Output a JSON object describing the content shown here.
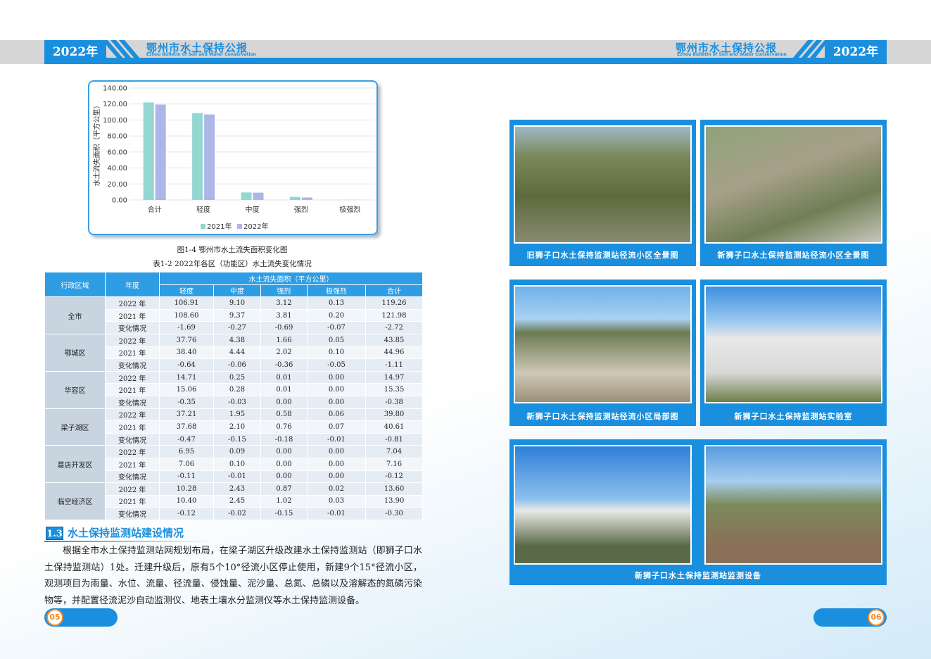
{
  "left_page_header": {
    "year": "2022年",
    "title": "鄂州市水土保持公报",
    "subtitle": "Ezhou Bulletin of Soil and Water Conservation"
  },
  "right_page_header": {
    "year": "2022年",
    "title": "鄂州市水土保持公报",
    "subtitle": "Ezhou Bulletin of Soil and Water Conservation"
  },
  "chart_data": {
    "type": "bar",
    "caption": "图1-4  鄂州市水土流失面积变化图",
    "y_label": "水土流失面积（平方公里）",
    "categories": [
      "合计",
      "轻度",
      "中度",
      "强烈",
      "极强烈"
    ],
    "series": [
      {
        "name": "2021年",
        "color": "#93d6d2",
        "values": [
          121.98,
          108.6,
          9.37,
          3.81,
          0.2
        ]
      },
      {
        "name": "2022年",
        "color": "#adb6e8",
        "values": [
          119.26,
          106.91,
          9.1,
          3.12,
          0.13
        ]
      }
    ],
    "ylim": [
      0,
      140
    ],
    "yticks": [
      {
        "value": 0,
        "label": "0.00"
      },
      {
        "value": 20,
        "label": "20.00"
      },
      {
        "value": 40,
        "label": "40.00"
      },
      {
        "value": 60,
        "label": "60.00"
      },
      {
        "value": 80,
        "label": "80.00"
      },
      {
        "value": 100,
        "label": "100.00"
      },
      {
        "value": 120,
        "label": "120.00"
      },
      {
        "value": 140,
        "label": "140.00"
      }
    ],
    "grid": true
  },
  "table": {
    "title": "表1-2  2022年各区（功能区）水土流失变化情况",
    "header": {
      "region": "行政区域",
      "year": "年度",
      "group": "水土流失面积（平方公里）",
      "columns": [
        "轻度",
        "中度",
        "强烈",
        "极强烈",
        "合计"
      ]
    },
    "groups": [
      {
        "region": "全市",
        "rows": [
          [
            "2022 年",
            "106.91",
            "9.10",
            "3.12",
            "0.13",
            "119.26"
          ],
          [
            "2021 年",
            "108.60",
            "9.37",
            "3.81",
            "0.20",
            "121.98"
          ],
          [
            "变化情况",
            "-1.69",
            "-0.27",
            "-0.69",
            "-0.07",
            "-2.72"
          ]
        ]
      },
      {
        "region": "鄂城区",
        "rows": [
          [
            "2022 年",
            "37.76",
            "4.38",
            "1.66",
            "0.05",
            "43.85"
          ],
          [
            "2021 年",
            "38.40",
            "4.44",
            "2.02",
            "0.10",
            "44.96"
          ],
          [
            "变化情况",
            "-0.64",
            "-0.06",
            "-0.36",
            "-0.05",
            "-1.11"
          ]
        ]
      },
      {
        "region": "华容区",
        "rows": [
          [
            "2022 年",
            "14.71",
            "0.25",
            "0.01",
            "0.00",
            "14.97"
          ],
          [
            "2021 年",
            "15.06",
            "0.28",
            "0.01",
            "0.00",
            "15.35"
          ],
          [
            "变化情况",
            "-0.35",
            "-0.03",
            "0.00",
            "0.00",
            "-0.38"
          ]
        ]
      },
      {
        "region": "梁子湖区",
        "rows": [
          [
            "2022 年",
            "37.21",
            "1.95",
            "0.58",
            "0.06",
            "39.80"
          ],
          [
            "2021 年",
            "37.68",
            "2.10",
            "0.76",
            "0.07",
            "40.61"
          ],
          [
            "变化情况",
            "-0.47",
            "-0.15",
            "-0.18",
            "-0.01",
            "-0.81"
          ]
        ]
      },
      {
        "region": "葛店开发区",
        "rows": [
          [
            "2022 年",
            "6.95",
            "0.09",
            "0.00",
            "0.00",
            "7.04"
          ],
          [
            "2021 年",
            "7.06",
            "0.10",
            "0.00",
            "0.00",
            "7.16"
          ],
          [
            "变化情况",
            "-0.11",
            "-0.01",
            "0.00",
            "0.00",
            "-0.12"
          ]
        ]
      },
      {
        "region": "临空经济区",
        "rows": [
          [
            "2022 年",
            "10.28",
            "2.43",
            "0.87",
            "0.02",
            "13.60"
          ],
          [
            "2021 年",
            "10.40",
            "2.45",
            "1.02",
            "0.03",
            "13.90"
          ],
          [
            "变化情况",
            "-0.12",
            "-0.02",
            "-0.15",
            "-0.01",
            "-0.30"
          ]
        ]
      }
    ]
  },
  "section": {
    "number": "1.3",
    "title": "水土保持监测站建设情况",
    "paragraph": "根据全市水土保持监测站网规划布局，在梁子湖区升级改建水土保持监测站（即狮子口水土保持监测站）1处。迁建升级后，原有5个10°径流小区停止使用，新建9个15°径流小区，观测项目为雨量、水位、流量、径流量、侵蚀量、泥沙量、总氮、总磷以及溶解态的氮磷污染物等，并配置径流泥沙自动监测仪、地表土壤水分监测仪等水土保持监测设备。"
  },
  "photos": [
    {
      "caption": "旧狮子口水土保持监测站径流小区全景图"
    },
    {
      "caption": "新狮子口水土保持监测站径流小区全景图"
    },
    {
      "caption": "新狮子口水土保持监测站径流小区局部图"
    },
    {
      "caption": "新狮子口水土保持监测站实验室"
    },
    {
      "caption": "新狮子口水土保持监测站监测设备"
    }
  ],
  "page_numbers": [
    "05",
    "06"
  ]
}
